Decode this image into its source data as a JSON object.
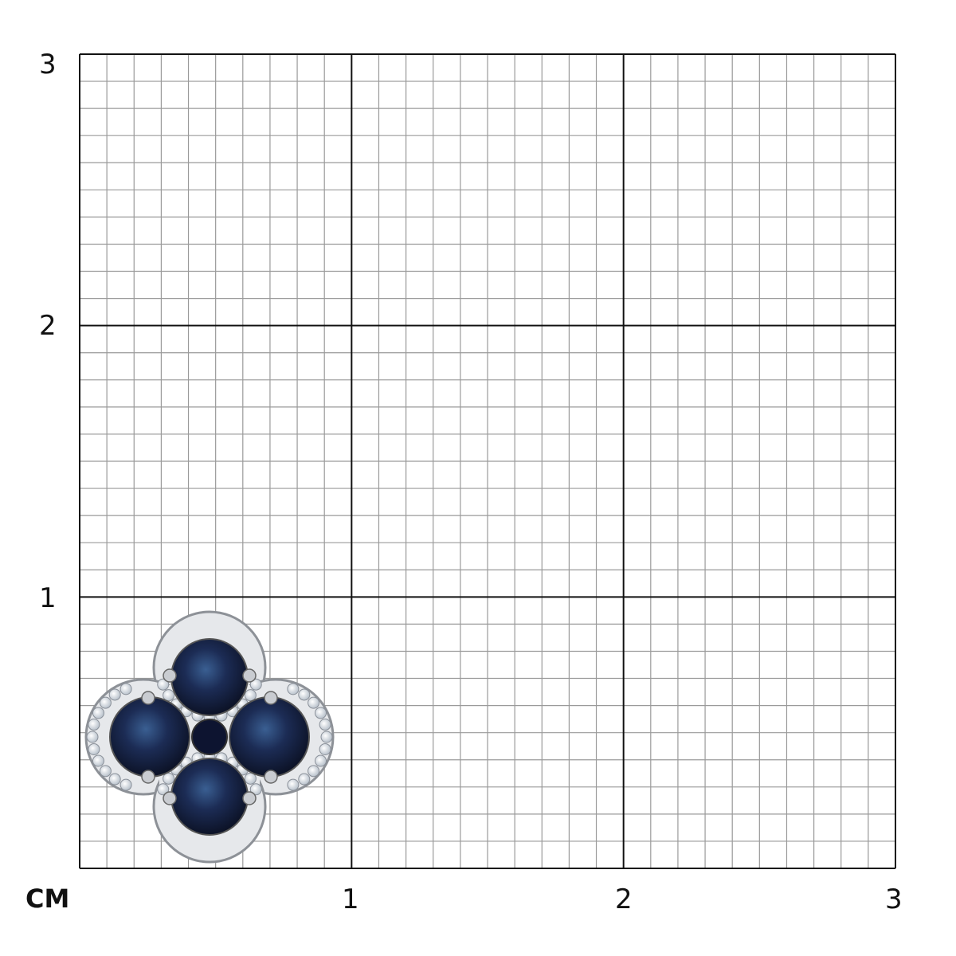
{
  "scale": {
    "unit_label": "CM",
    "y_labels": [
      "1",
      "2",
      "3"
    ],
    "x_labels": [
      "1",
      "2",
      "3"
    ],
    "range_cm": 3,
    "minor_divisions_per_cm": 10
  },
  "colors": {
    "major_grid": "#111111",
    "minor_grid": "#9a9a9a",
    "sapphire": "#14203f",
    "metal": "#d8dadd"
  },
  "product": {
    "icon": "sapphire-clover-earring-image"
  }
}
